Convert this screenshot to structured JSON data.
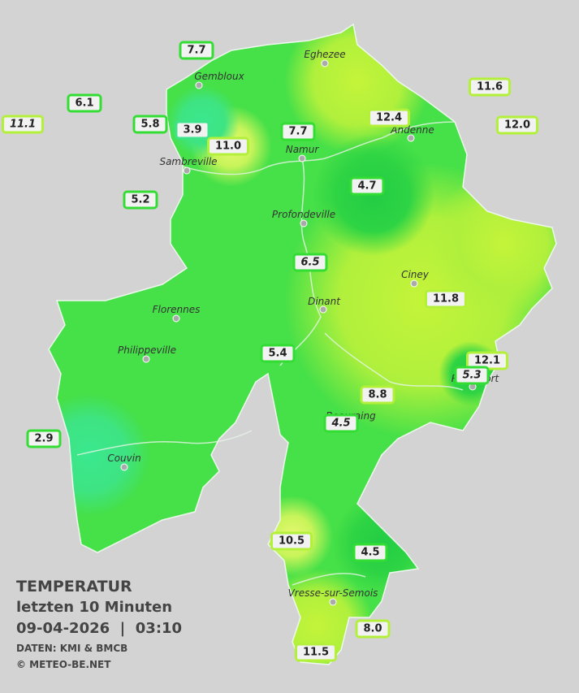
{
  "legend": {
    "title": "TEMPERATUR",
    "subtitle": "letzten 10 Minuten",
    "datetime": "09-04-2026  |  03:10",
    "source": "DATEN: KMI & BMCB",
    "copyright": "© METEO-BE.NET"
  },
  "cities": [
    {
      "name": "Eghezee"
    },
    {
      "name": "Gembloux"
    },
    {
      "name": "Namur"
    },
    {
      "name": "Andenne"
    },
    {
      "name": "Sambreville"
    },
    {
      "name": "Profondeville"
    },
    {
      "name": "Ciney"
    },
    {
      "name": "Dinant"
    },
    {
      "name": "Florennes"
    },
    {
      "name": "Philippeville"
    },
    {
      "name": "Rochefort"
    },
    {
      "name": "Beauraing"
    },
    {
      "name": "Couvin"
    },
    {
      "name": "Vresse-sur-Semois"
    }
  ],
  "stations": [
    {
      "value": "7.7",
      "italic": false
    },
    {
      "value": "6.1",
      "italic": false
    },
    {
      "value": "11.1",
      "italic": true
    },
    {
      "value": "5.8",
      "italic": false
    },
    {
      "value": "3.9",
      "italic": false
    },
    {
      "value": "11.0",
      "italic": false
    },
    {
      "value": "7.7",
      "italic": false
    },
    {
      "value": "12.4",
      "italic": false
    },
    {
      "value": "11.6",
      "italic": false
    },
    {
      "value": "12.0",
      "italic": false
    },
    {
      "value": "5.2",
      "italic": false
    },
    {
      "value": "4.7",
      "italic": false
    },
    {
      "value": "6.5",
      "italic": true
    },
    {
      "value": "11.8",
      "italic": false
    },
    {
      "value": "5.4",
      "italic": false
    },
    {
      "value": "12.1",
      "italic": false
    },
    {
      "value": "5.3",
      "italic": true
    },
    {
      "value": "8.8",
      "italic": false
    },
    {
      "value": "4.5",
      "italic": true
    },
    {
      "value": "2.9",
      "italic": false
    },
    {
      "value": "10.5",
      "italic": false
    },
    {
      "value": "4.5",
      "italic": false
    },
    {
      "value": "8.0",
      "italic": false
    },
    {
      "value": "11.5",
      "italic": false
    }
  ]
}
